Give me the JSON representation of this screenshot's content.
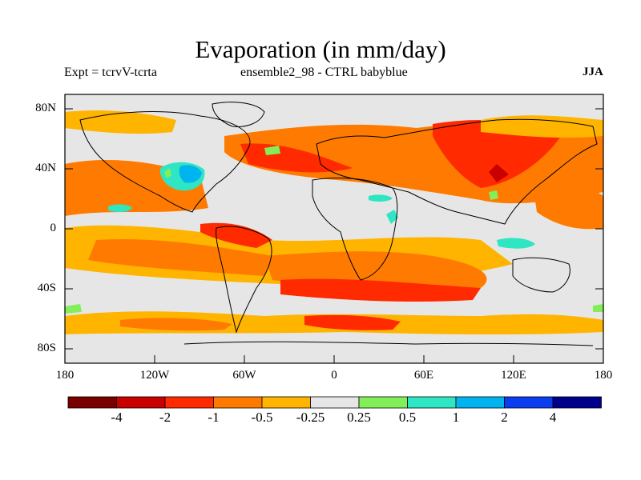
{
  "header": {
    "title": "Evaporation (in mm/day)",
    "left_label": "Expt = tcrvV-tcrta",
    "center_label": "ensemble2_98 - CTRL babyblue",
    "right_label": "JJA"
  },
  "map": {
    "lat_ticks": [
      "80N",
      "40N",
      "0",
      "40S",
      "80S"
    ],
    "lon_ticks": [
      "180",
      "120W",
      "60W",
      "0",
      "60E",
      "120E",
      "180"
    ]
  },
  "colorbar": {
    "colors": [
      "#7a0000",
      "#c80000",
      "#ff2a00",
      "#ff7a00",
      "#ffb400",
      "#e6e6e6",
      "#82ee5a",
      "#2ee6c3",
      "#00b4f0",
      "#0a3cf0",
      "#00008c"
    ],
    "labels": [
      "-4",
      "-2",
      "-1",
      "-0.5",
      "-0.25",
      "0.25",
      "0.5",
      "1",
      "2",
      "4"
    ]
  }
}
